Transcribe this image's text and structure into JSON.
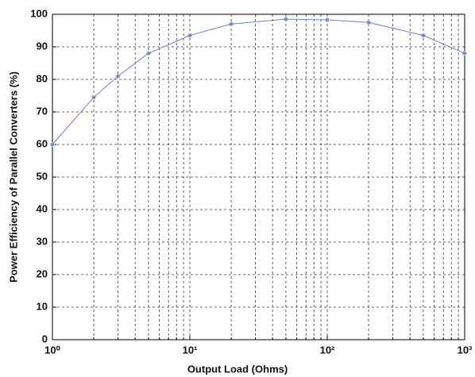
{
  "chart_data": {
    "type": "line",
    "xlabel": "Output Load (Ohms)",
    "ylabel": "Power Efficiency of Parallel Converters (%)",
    "xscale": "log",
    "xlim": [
      1,
      1000
    ],
    "ylim": [
      0,
      100
    ],
    "xticks": [
      {
        "value": 1,
        "label": "10⁰"
      },
      {
        "value": 10,
        "label": "10¹"
      },
      {
        "value": 100,
        "label": "10²"
      },
      {
        "value": 1000,
        "label": "10³"
      }
    ],
    "xminorticks": [
      2,
      3,
      4,
      5,
      6,
      7,
      8,
      9,
      20,
      30,
      40,
      50,
      60,
      70,
      80,
      90,
      200,
      300,
      400,
      500,
      600,
      700,
      800,
      900
    ],
    "yticks": [
      0,
      10,
      20,
      30,
      40,
      50,
      60,
      70,
      80,
      90,
      100
    ],
    "grid": true,
    "x": [
      1,
      2,
      3,
      5,
      10,
      20,
      50,
      100,
      200,
      500,
      1000
    ],
    "series": [
      {
        "color": "#7080d0",
        "values": [
          60,
          74.5,
          81,
          88,
          93.5,
          97,
          98.5,
          98.3,
          97.5,
          93.5,
          88
        ]
      }
    ]
  }
}
